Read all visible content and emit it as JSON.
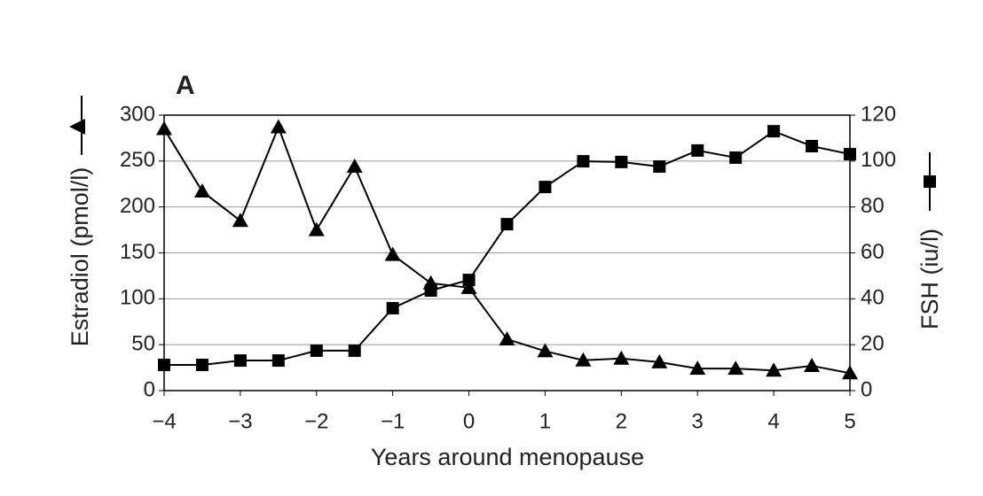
{
  "chart_data": {
    "type": "line",
    "title": "A",
    "xlabel": "Years around menopause",
    "ylabel": "Estradiol (pmol/l)",
    "y2label": "FSH (iu/l)",
    "x": [
      -4,
      -3.5,
      -3,
      -2.5,
      -2,
      -1.5,
      -1,
      -0.5,
      0,
      0.5,
      1,
      1.5,
      2,
      2.5,
      3,
      3.5,
      4,
      4.5,
      5
    ],
    "series": [
      {
        "color": "#000000",
        "marker": "triangle",
        "axis": "y",
        "values": [
          285,
          217,
          185,
          287,
          175,
          244,
          148,
          117,
          112,
          56,
          43,
          33,
          35,
          31,
          24,
          24,
          22,
          27,
          19
        ]
      },
      {
        "color": "#000000",
        "marker": "square",
        "axis": "y2",
        "values": [
          11.2,
          11.2,
          13.1,
          13.1,
          17.4,
          17.4,
          35.9,
          43.6,
          48.2,
          72.5,
          88.7,
          99.9,
          99.6,
          97.6,
          104.6,
          101.5,
          113,
          106.5,
          103
        ]
      }
    ],
    "xlim": [
      -4,
      5
    ],
    "xticks": [
      {
        "value": -4,
        "label": "−4"
      },
      {
        "value": -3,
        "label": "−3"
      },
      {
        "value": -2,
        "label": "−2"
      },
      {
        "value": -1,
        "label": "−1"
      },
      0,
      1,
      2,
      3,
      4,
      5
    ],
    "ylim": [
      0,
      300
    ],
    "yticks": [
      0,
      50,
      100,
      150,
      200,
      250,
      300
    ],
    "y2lim": [
      0,
      120
    ],
    "y2ticks": [
      0,
      20,
      40,
      60,
      80,
      100,
      120
    ],
    "grid": true
  }
}
